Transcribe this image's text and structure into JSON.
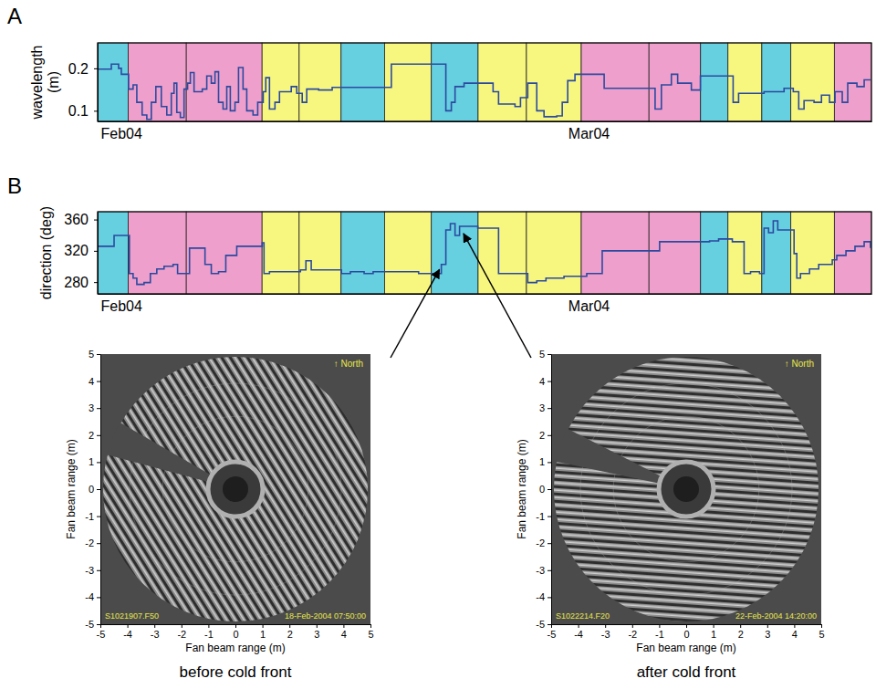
{
  "chart_data": [
    {
      "type": "line",
      "panel": "A",
      "ylabel": "wavelength (m)",
      "x": [
        32.0,
        32.85,
        33.3,
        33.47,
        33.92,
        34.2,
        34.43,
        34.76,
        35.05,
        35.33,
        35.61,
        35.95,
        36.29,
        36.57,
        36.74,
        36.91,
        37.13,
        37.36,
        37.58,
        37.75,
        37.98,
        38.49,
        38.77,
        39.05,
        39.28,
        39.5,
        39.78,
        40.01,
        40.23,
        40.52,
        40.74,
        41.02,
        41.25,
        41.64,
        41.93,
        42.27,
        42.43,
        42.66,
        43.0,
        43.28,
        44.01,
        44.35,
        44.69,
        44.97,
        45.71,
        46.55,
        49.88,
        50.22,
        53.38,
        53.6,
        53.94,
        54.17,
        54.73,
        56.14,
        56.53,
        56.87,
        57.89,
        58.23,
        58.68,
        58.96,
        59.24,
        59.69,
        60.48,
        60.82,
        61.16,
        61.61,
        63.19,
        63.42,
        66.18,
        66.58,
        66.97,
        67.59,
        67.98,
        68.83,
        69.39,
        71.26,
        71.42,
        71.76,
        73.34,
        74.58,
        75.15,
        75.49,
        75.82,
        76.44,
        76.9,
        77.4,
        77.74,
        78.19,
        78.53,
        79.1,
        79.55,
        79.94
      ],
      "values": [
        0.198,
        0.21,
        0.2,
        0.186,
        0.151,
        0.161,
        0.12,
        0.09,
        0.08,
        0.12,
        0.157,
        0.11,
        0.09,
        0.141,
        0.165,
        0.096,
        0.084,
        0.151,
        0.165,
        0.19,
        0.145,
        0.151,
        0.182,
        0.165,
        0.192,
        0.12,
        0.104,
        0.157,
        0.1,
        0.12,
        0.202,
        0.151,
        0.1,
        0.09,
        0.12,
        0.145,
        0.178,
        0.104,
        0.12,
        0.145,
        0.157,
        0.141,
        0.12,
        0.151,
        0.149,
        0.155,
        0.155,
        0.21,
        0.21,
        0.1,
        0.12,
        0.157,
        0.165,
        0.165,
        0.145,
        0.116,
        0.11,
        0.131,
        0.165,
        0.165,
        0.1,
        0.086,
        0.088,
        0.12,
        0.171,
        0.186,
        0.186,
        0.153,
        0.153,
        0.104,
        0.161,
        0.186,
        0.165,
        0.149,
        0.182,
        0.182,
        0.12,
        0.141,
        0.145,
        0.153,
        0.145,
        0.104,
        0.124,
        0.12,
        0.137,
        0.12,
        0.145,
        0.12,
        0.165,
        0.157,
        0.173,
        0.173
      ],
      "color": "#2b4aa0",
      "line_style": "step",
      "xlim": [
        32,
        80
      ],
      "ylim": [
        0.075,
        0.26
      ],
      "xticks": [
        {
          "value": 32,
          "label": "Feb04"
        },
        {
          "value": 61,
          "label": "Mar04"
        }
      ],
      "yticks": [
        0.1,
        0.2
      ],
      "band_edges": [
        32,
        33.9,
        37.5,
        42.2,
        44.5,
        47.1,
        49.8,
        52.7,
        55.6,
        58.6,
        62.0,
        66.2,
        69.4,
        71.1,
        73.2,
        75.0,
        77.7,
        80
      ],
      "band_colors": [
        "#66cfe0",
        "#ef9fcb",
        "#ef9fcb",
        "#f7f780",
        "#f7f780",
        "#66cfe0",
        "#f7f780",
        "#66cfe0",
        "#f7f780",
        "#f7f780",
        "#ef9fcb",
        "#ef9fcb",
        "#66cfe0",
        "#f7f780",
        "#66cfe0",
        "#f7f780",
        "#ef9fcb"
      ]
    },
    {
      "type": "line",
      "panel": "B",
      "ylabel": "direction (deg)",
      "x": [
        32.0,
        32.85,
        33.02,
        33.86,
        33.97,
        34.2,
        34.43,
        34.88,
        35.27,
        35.67,
        36.12,
        36.68,
        36.96,
        37.53,
        37.7,
        38.37,
        38.66,
        39.05,
        39.5,
        39.95,
        40.63,
        42.21,
        42.32,
        42.66,
        44.58,
        44.92,
        45.25,
        47.12,
        47.68,
        48.53,
        49.09,
        51.91,
        52.7,
        53.32,
        53.6,
        53.88,
        54.17,
        54.45,
        55.29,
        55.58,
        56.7,
        56.87,
        58.4,
        58.68,
        59.24,
        59.81,
        60.37,
        60.93,
        62.06,
        62.34,
        63.19,
        63.3,
        66.57,
        66.86,
        68.83,
        69.96,
        70.52,
        71.09,
        71.37,
        71.93,
        72.1,
        72.5,
        73.06,
        73.34,
        73.62,
        73.91,
        74.19,
        75.03,
        75.2,
        75.37,
        75.6,
        76.16,
        76.73,
        77.29,
        77.57,
        77.85,
        78.42,
        78.98,
        79.55,
        79.94
      ],
      "values": [
        325.8,
        325.8,
        339.7,
        339.7,
        291.0,
        285.2,
        277.1,
        279.4,
        291.0,
        296.8,
        300.3,
        302.6,
        291.0,
        291.0,
        323.5,
        323.5,
        302.6,
        291.0,
        293.3,
        314.2,
        325.8,
        330.4,
        291.0,
        293.3,
        295.7,
        307.3,
        295.7,
        291.0,
        293.3,
        291.0,
        293.3,
        291.0,
        291.0,
        302.6,
        346.7,
        354.8,
        339.7,
        351.3,
        351.3,
        349.0,
        349.0,
        291.0,
        291.0,
        279.4,
        281.7,
        285.2,
        285.2,
        287.5,
        287.5,
        291.0,
        291.0,
        320.0,
        320.0,
        331.6,
        331.6,
        332.7,
        335.1,
        335.1,
        331.6,
        331.6,
        291.0,
        293.3,
        291.0,
        349.0,
        343.2,
        358.3,
        346.7,
        346.7,
        316.5,
        285.2,
        291.0,
        296.8,
        302.6,
        302.6,
        308.4,
        314.2,
        320.0,
        325.8,
        331.6,
        323.5
      ],
      "color": "#2b4aa0",
      "line_style": "step",
      "xlim": [
        32,
        80
      ],
      "ylim": [
        265,
        370
      ],
      "xticks": [
        {
          "value": 32,
          "label": "Feb04"
        },
        {
          "value": 61,
          "label": "Mar04"
        }
      ],
      "yticks": [
        280,
        320,
        360
      ],
      "band_edges": [
        32,
        33.9,
        37.5,
        42.2,
        44.5,
        47.1,
        49.8,
        52.7,
        55.6,
        58.6,
        62.0,
        66.2,
        69.4,
        71.1,
        73.2,
        75.0,
        77.7,
        80
      ],
      "band_colors": [
        "#66cfe0",
        "#ef9fcb",
        "#ef9fcb",
        "#f7f780",
        "#f7f780",
        "#66cfe0",
        "#f7f780",
        "#66cfe0",
        "#f7f780",
        "#f7f780",
        "#ef9fcb",
        "#ef9fcb",
        "#66cfe0",
        "#f7f780",
        "#66cfe0",
        "#f7f780",
        "#ef9fcb"
      ]
    },
    {
      "type": "image",
      "title": "before cold front",
      "annotations": [
        "↑ North",
        "S1021907.F50",
        "18-Feb-2004 07:50:00"
      ],
      "xlabel": "Fan beam range (m)",
      "ylabel": "Fan beam range (m)",
      "xlim": [
        -5,
        5
      ],
      "ylim": [
        -5,
        5
      ],
      "xticks": [
        -5,
        -4,
        -3,
        -2,
        -1,
        0,
        1,
        2,
        3,
        4,
        5
      ],
      "yticks": [
        -5,
        -4,
        -3,
        -2,
        -1,
        0,
        1,
        2,
        3,
        4,
        5
      ],
      "arrow_to": [
        53.2,
        296
      ]
    },
    {
      "type": "image",
      "title": "after cold front",
      "annotations": [
        "↑ North",
        "S1022214.F20",
        "22-Feb-2004 14:20:00"
      ],
      "xlabel": "Fan beam range (m)",
      "ylabel": "Fan beam range (m)",
      "xlim": [
        -5,
        5
      ],
      "ylim": [
        -5,
        5
      ],
      "xticks": [
        -5,
        -4,
        -3,
        -2,
        -1,
        0,
        1,
        2,
        3,
        4,
        5
      ],
      "yticks": [
        -5,
        -4,
        -3,
        -2,
        -1,
        0,
        1,
        2,
        3,
        4,
        5
      ],
      "arrow_to": [
        54.7,
        342
      ]
    }
  ]
}
